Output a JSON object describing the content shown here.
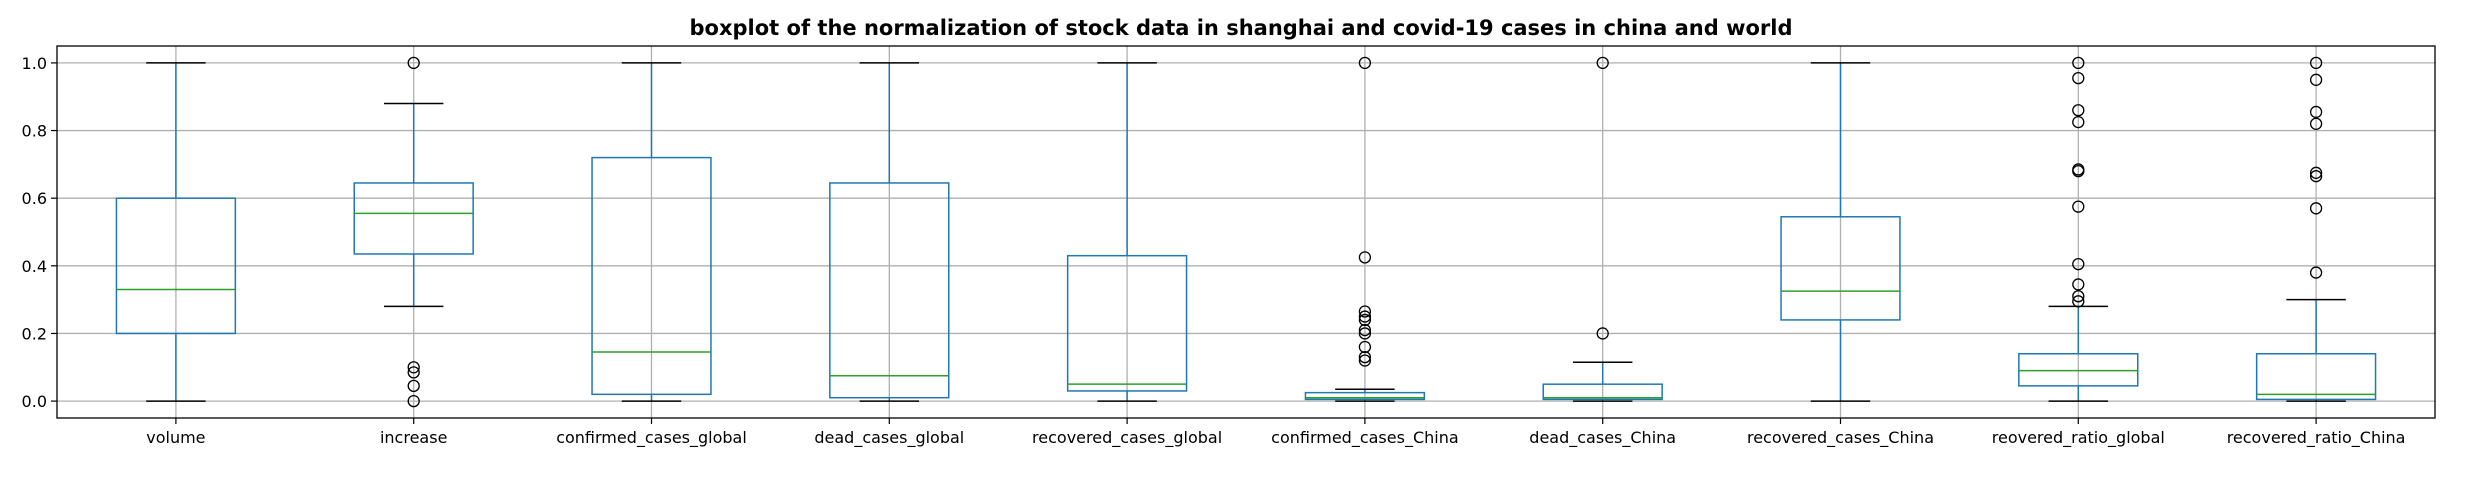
{
  "chart_data": {
    "type": "boxplot",
    "title": "boxplot of the normalization of stock data in shanghai and covid-19 cases in china and world",
    "xlabel": "",
    "ylabel": "",
    "ylim": [
      -0.05,
      1.05
    ],
    "yticks": [
      0.0,
      0.2,
      0.4,
      0.6,
      0.8,
      1.0
    ],
    "ytick_labels": [
      "0.0",
      "0.2",
      "0.4",
      "0.6",
      "0.8",
      "1.0"
    ],
    "grid": true,
    "colors": {
      "box": "#1f77b4",
      "median": "#2ca02c",
      "whisker_cap": "#000000",
      "grid": "#b0b0b0",
      "flier": "#000000"
    },
    "categories": [
      "volume",
      "increase",
      "confirmed_cases_global",
      "dead_cases_global",
      "recovered_cases_global",
      "confirmed_cases_China",
      "dead_cases_China",
      "recovered_cases_China",
      "reovered_ratio_global",
      "recovered_ratio_China"
    ],
    "boxes": [
      {
        "whislo": 0.0,
        "q1": 0.2,
        "median": 0.33,
        "q3": 0.6,
        "whishi": 1.0,
        "fliers": []
      },
      {
        "whislo": 0.28,
        "q1": 0.435,
        "median": 0.555,
        "q3": 0.645,
        "whishi": 0.88,
        "fliers": [
          0.0,
          0.045,
          0.085,
          0.1,
          1.0
        ]
      },
      {
        "whislo": 0.0,
        "q1": 0.02,
        "median": 0.145,
        "q3": 0.72,
        "whishi": 1.0,
        "fliers": []
      },
      {
        "whislo": 0.0,
        "q1": 0.01,
        "median": 0.075,
        "q3": 0.645,
        "whishi": 1.0,
        "fliers": []
      },
      {
        "whislo": 0.0,
        "q1": 0.03,
        "median": 0.05,
        "q3": 0.43,
        "whishi": 1.0,
        "fliers": []
      },
      {
        "whislo": 0.0,
        "q1": 0.005,
        "median": 0.01,
        "q3": 0.025,
        "whishi": 0.035,
        "fliers": [
          0.12,
          0.13,
          0.16,
          0.2,
          0.21,
          0.24,
          0.25,
          0.265,
          0.425,
          1.0
        ]
      },
      {
        "whislo": 0.0,
        "q1": 0.005,
        "median": 0.01,
        "q3": 0.05,
        "whishi": 0.115,
        "fliers": [
          0.2,
          1.0
        ]
      },
      {
        "whislo": 0.0,
        "q1": 0.24,
        "median": 0.325,
        "q3": 0.545,
        "whishi": 1.0,
        "fliers": []
      },
      {
        "whislo": 0.0,
        "q1": 0.045,
        "median": 0.09,
        "q3": 0.14,
        "whishi": 0.28,
        "fliers": [
          0.295,
          0.31,
          0.345,
          0.405,
          0.575,
          0.68,
          0.685,
          0.825,
          0.86,
          0.955,
          1.0
        ]
      },
      {
        "whislo": 0.0,
        "q1": 0.005,
        "median": 0.02,
        "q3": 0.14,
        "whishi": 0.3,
        "fliers": [
          0.38,
          0.57,
          0.665,
          0.675,
          0.82,
          0.855,
          0.95,
          1.0
        ]
      }
    ]
  }
}
